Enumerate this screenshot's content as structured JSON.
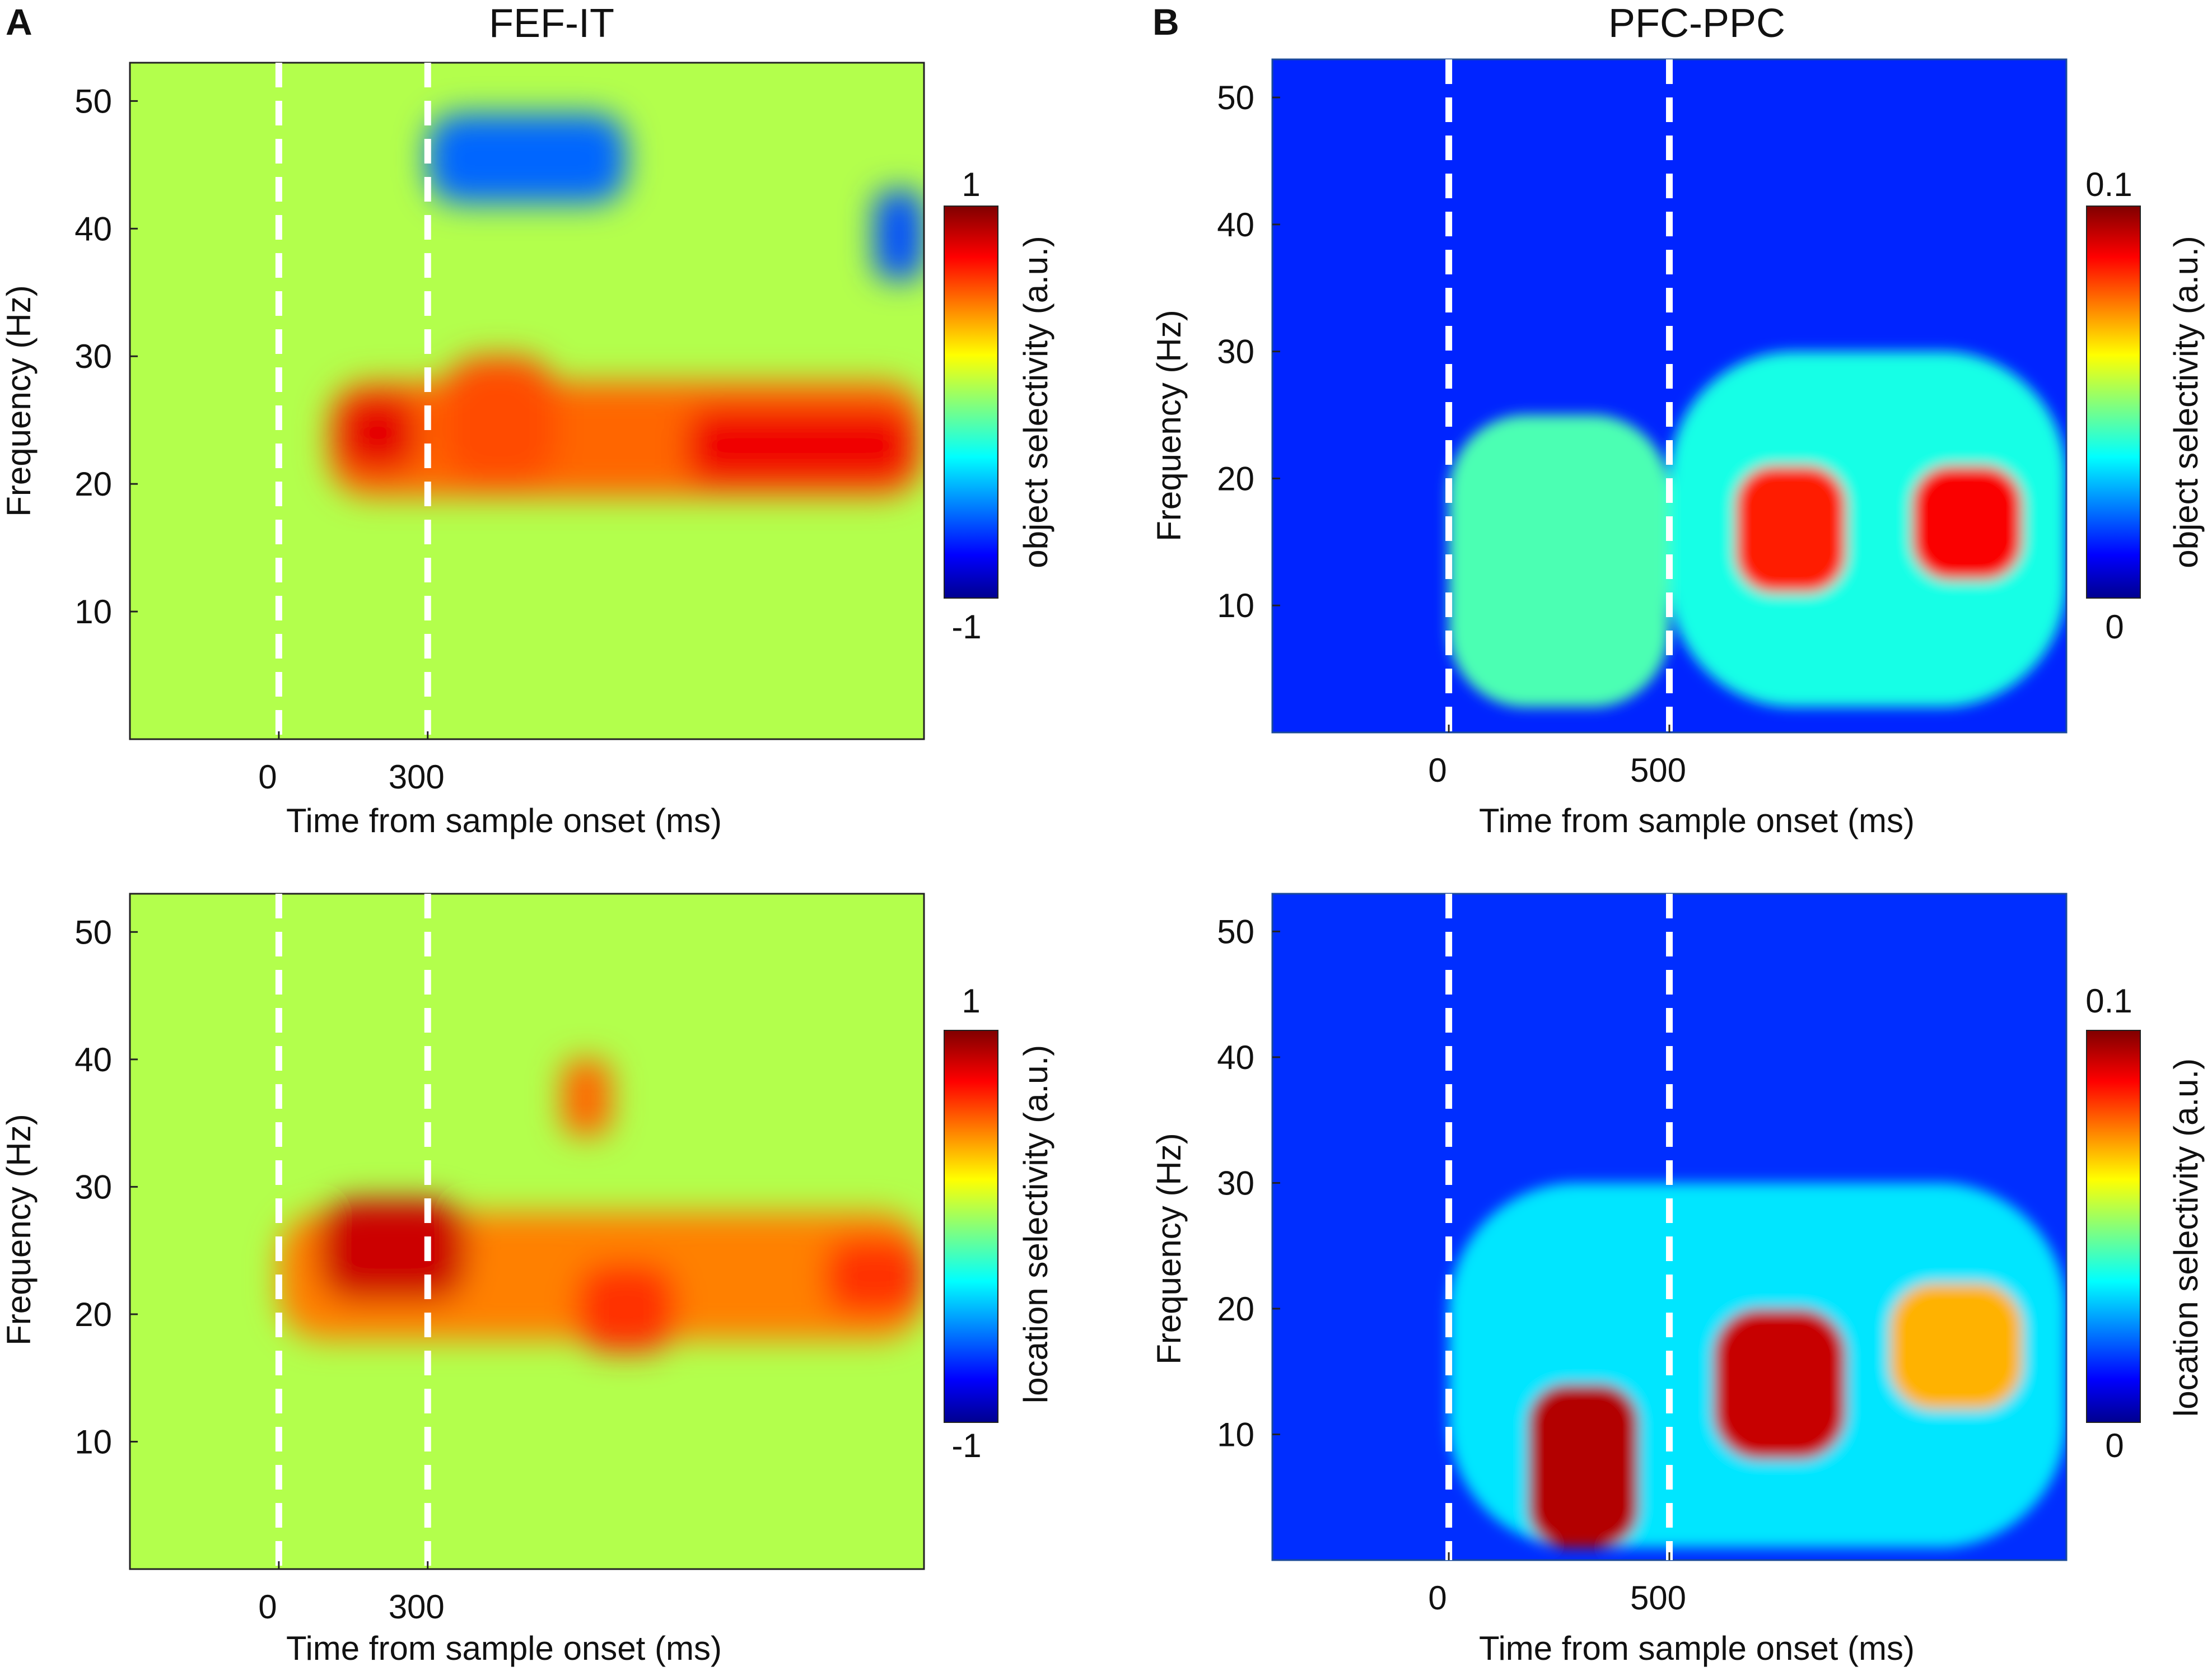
{
  "panel_labels": [
    "A",
    "B"
  ],
  "chart_data": [
    {
      "type": "heatmap",
      "panel": "A",
      "title": "FEF-IT",
      "xlabel": "Time from sample onset (ms)",
      "ylabel": "Frequency (Hz)",
      "x_tick_labels": [
        "0",
        "300"
      ],
      "x_tick_values": [
        0,
        300
      ],
      "xlim": [
        -300,
        1300
      ],
      "y_tick_labels": [
        "10",
        "20",
        "30",
        "40",
        "50"
      ],
      "y_tick_values": [
        10,
        20,
        30,
        40,
        50
      ],
      "ylim": [
        0,
        53
      ],
      "markers_ms": [
        0,
        300
      ],
      "colorbar": {
        "label": "object selectivity (a.u.)",
        "min_label": "-1",
        "max_label": "1",
        "range": [
          -1,
          1
        ],
        "colormap": "jet"
      },
      "regions": [
        {
          "t_start": 100,
          "t_end": 1300,
          "f_low": 19,
          "f_high": 28,
          "value": 0.55
        },
        {
          "t_start": 120,
          "t_end": 280,
          "f_low": 21,
          "f_high": 27,
          "value": 0.8
        },
        {
          "t_start": 330,
          "t_end": 560,
          "f_low": 20,
          "f_high": 30,
          "value": 0.6
        },
        {
          "t_start": 820,
          "t_end": 1280,
          "f_low": 20,
          "f_high": 26,
          "value": 0.78
        },
        {
          "t_start": 300,
          "t_end": 700,
          "f_low": 42,
          "f_high": 49,
          "value": -0.55
        },
        {
          "t_start": 1200,
          "t_end": 1300,
          "f_low": 36,
          "f_high": 43,
          "value": -0.6
        }
      ]
    },
    {
      "type": "heatmap",
      "panel": "B",
      "title": "PFC-PPC",
      "xlabel": "Time from sample onset (ms)",
      "ylabel": "Frequency (Hz)",
      "x_tick_labels": [
        "0",
        "500"
      ],
      "x_tick_values": [
        0,
        500
      ],
      "xlim": [
        -400,
        1400
      ],
      "y_tick_labels": [
        "10",
        "20",
        "30",
        "40",
        "50"
      ],
      "y_tick_values": [
        10,
        20,
        30,
        40,
        50
      ],
      "ylim": [
        0,
        53
      ],
      "markers_ms": [
        0,
        500
      ],
      "colorbar": {
        "label": "object selectivity (a.u.)",
        "min_label": "0",
        "max_label": "0.1",
        "range": [
          0,
          0.1
        ],
        "colormap": "jet"
      },
      "regions": [
        {
          "t_start": 650,
          "t_end": 900,
          "f_low": 11,
          "f_high": 21,
          "value": 0.085
        },
        {
          "t_start": 1050,
          "t_end": 1300,
          "f_low": 12,
          "f_high": 21,
          "value": 0.088
        },
        {
          "t_start": 0,
          "t_end": 500,
          "f_low": 2,
          "f_high": 25,
          "value": 0.045
        },
        {
          "t_start": 500,
          "t_end": 1400,
          "f_low": 2,
          "f_high": 30,
          "value": 0.04
        }
      ]
    },
    {
      "type": "heatmap",
      "panel": "A",
      "title": "",
      "xlabel": "Time from sample onset (ms)",
      "ylabel": "Frequency (Hz)",
      "x_tick_labels": [
        "0",
        "300"
      ],
      "x_tick_values": [
        0,
        300
      ],
      "xlim": [
        -300,
        1300
      ],
      "y_tick_labels": [
        "10",
        "20",
        "30",
        "40",
        "50"
      ],
      "y_tick_values": [
        10,
        20,
        30,
        40,
        50
      ],
      "ylim": [
        0,
        53
      ],
      "markers_ms": [
        0,
        300
      ],
      "colorbar": {
        "label": "location selectivity (a.u.)",
        "min_label": "-1",
        "max_label": "1",
        "range": [
          -1,
          1
        ],
        "colormap": "jet"
      },
      "regions": [
        {
          "t_start": 0,
          "t_end": 1300,
          "f_low": 18,
          "f_high": 28,
          "value": 0.5
        },
        {
          "t_start": 80,
          "t_end": 380,
          "f_low": 21,
          "f_high": 29,
          "value": 0.85
        },
        {
          "t_start": 600,
          "t_end": 800,
          "f_low": 17,
          "f_high": 24,
          "value": 0.65
        },
        {
          "t_start": 1100,
          "t_end": 1300,
          "f_low": 20,
          "f_high": 26,
          "value": 0.65
        },
        {
          "t_start": 570,
          "t_end": 670,
          "f_low": 34,
          "f_high": 40,
          "value": 0.55
        }
      ]
    },
    {
      "type": "heatmap",
      "panel": "B",
      "title": "",
      "xlabel": "Time from sample onset (ms)",
      "ylabel": "Frequency (Hz)",
      "x_tick_labels": [
        "0",
        "500"
      ],
      "x_tick_values": [
        0,
        500
      ],
      "xlim": [
        -400,
        1400
      ],
      "y_tick_labels": [
        "10",
        "20",
        "30",
        "40",
        "50"
      ],
      "y_tick_values": [
        10,
        20,
        30,
        40,
        50
      ],
      "ylim": [
        0,
        53
      ],
      "markers_ms": [
        0,
        500
      ],
      "colorbar": {
        "label": "location selectivity (a.u.)",
        "min_label": "0",
        "max_label": "0.1",
        "range": [
          0,
          0.1
        ],
        "colormap": "jet"
      },
      "regions": [
        {
          "t_start": 180,
          "t_end": 430,
          "f_low": 1,
          "f_high": 14,
          "value": 0.095
        },
        {
          "t_start": 600,
          "t_end": 900,
          "f_low": 8,
          "f_high": 20,
          "value": 0.093
        },
        {
          "t_start": 1000,
          "t_end": 1300,
          "f_low": 12,
          "f_high": 22,
          "value": 0.07
        },
        {
          "t_start": 0,
          "t_end": 1400,
          "f_low": 1,
          "f_high": 30,
          "value": 0.035
        }
      ]
    }
  ]
}
